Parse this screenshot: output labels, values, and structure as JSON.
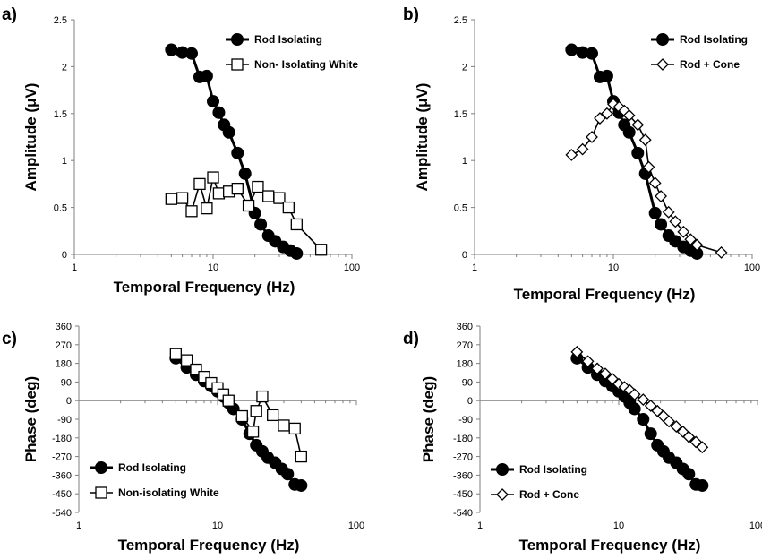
{
  "chart_data": [
    {
      "panel": "a)",
      "type": "line",
      "xlabel": "Temporal Frequency (Hz)",
      "ylabel": "Amplitude (μV)",
      "xscale": "log",
      "xlim": [
        1,
        100
      ],
      "ylim": [
        0,
        2.5
      ],
      "xticks": [
        "1",
        "10",
        "100"
      ],
      "yticks": [
        "0",
        "0.5",
        "1",
        "1.5",
        "2",
        "2.5"
      ],
      "legend": "top-right",
      "series": [
        {
          "name": "Rod Isolating",
          "marker": "filled-circle",
          "color": "#000000",
          "x": [
            5,
            6,
            7,
            8,
            9,
            10,
            11,
            12,
            13,
            15,
            17,
            20,
            22,
            25,
            28,
            32,
            36,
            40
          ],
          "y": [
            2.18,
            2.15,
            2.14,
            1.89,
            1.9,
            1.63,
            1.51,
            1.38,
            1.3,
            1.08,
            0.86,
            0.44,
            0.32,
            0.2,
            0.14,
            0.08,
            0.04,
            0.01
          ]
        },
        {
          "name": "Non- Isolating White",
          "marker": "open-square",
          "color": "#000000",
          "x": [
            5,
            6,
            7,
            8,
            9,
            10,
            11,
            13,
            15,
            18,
            21,
            25,
            30,
            35,
            40,
            60
          ],
          "y": [
            0.59,
            0.6,
            0.46,
            0.75,
            0.49,
            0.82,
            0.65,
            0.67,
            0.7,
            0.52,
            0.72,
            0.62,
            0.6,
            0.5,
            0.32,
            0.05
          ]
        }
      ]
    },
    {
      "panel": "b)",
      "type": "line",
      "xlabel": "Temporal Frequency (Hz)",
      "ylabel": "Amplitude (μV)",
      "xscale": "log",
      "xlim": [
        1,
        100
      ],
      "ylim": [
        0,
        2.5
      ],
      "xticks": [
        "1",
        "10",
        "100"
      ],
      "yticks": [
        "0",
        "0.5",
        "1",
        "1.5",
        "2",
        "2.5"
      ],
      "legend": "top-right",
      "series": [
        {
          "name": "Rod Isolating",
          "marker": "filled-circle",
          "color": "#000000",
          "x": [
            5,
            6,
            7,
            8,
            9,
            10,
            11,
            12,
            13,
            15,
            17,
            20,
            22,
            25,
            28,
            32,
            36,
            40
          ],
          "y": [
            2.18,
            2.15,
            2.14,
            1.89,
            1.9,
            1.63,
            1.51,
            1.38,
            1.3,
            1.08,
            0.86,
            0.44,
            0.32,
            0.2,
            0.14,
            0.08,
            0.04,
            0.01
          ]
        },
        {
          "name": "Rod + Cone",
          "marker": "open-diamond",
          "color": "#000000",
          "x": [
            5,
            6,
            7,
            8,
            9,
            10,
            11,
            12,
            13,
            15,
            17,
            18,
            20,
            22,
            25,
            28,
            32,
            36,
            40,
            60
          ],
          "y": [
            1.06,
            1.12,
            1.25,
            1.45,
            1.5,
            1.6,
            1.57,
            1.53,
            1.48,
            1.38,
            1.22,
            0.93,
            0.76,
            0.62,
            0.45,
            0.35,
            0.24,
            0.16,
            0.1,
            0.02
          ]
        }
      ]
    },
    {
      "panel": "c)",
      "type": "line",
      "xlabel": "Temporal Frequency (Hz)",
      "ylabel": "Phase (deg)",
      "xscale": "log",
      "xlim": [
        1,
        100
      ],
      "ylim": [
        -540,
        360
      ],
      "xticks": [
        "1",
        "10",
        "100"
      ],
      "yticks": [
        "-540",
        "-450",
        "-360",
        "-270",
        "-180",
        "-90",
        "0",
        "90",
        "180",
        "270",
        "360"
      ],
      "legend": "bottom-left",
      "series": [
        {
          "name": "Rod Isolating",
          "marker": "filled-circle",
          "color": "#000000",
          "x": [
            5,
            6,
            7,
            8,
            9,
            10,
            11,
            12,
            13,
            15,
            17,
            19,
            21,
            23,
            26,
            29,
            32,
            36,
            40
          ],
          "y": [
            205,
            160,
            125,
            95,
            70,
            45,
            20,
            -10,
            -40,
            -90,
            -160,
            -215,
            -245,
            -275,
            -300,
            -330,
            -355,
            -405,
            -410
          ]
        },
        {
          "name": "Non-isolating White",
          "marker": "open-square",
          "color": "#000000",
          "x": [
            5,
            6,
            7,
            8,
            9,
            10,
            11,
            12,
            15,
            18,
            19,
            21,
            25,
            30,
            36,
            40
          ],
          "y": [
            225,
            195,
            150,
            115,
            85,
            60,
            30,
            0,
            -75,
            -150,
            -50,
            20,
            -70,
            -120,
            -135,
            -270
          ]
        }
      ]
    },
    {
      "panel": "d)",
      "type": "line",
      "xlabel": "Temporal Frequency (Hz)",
      "ylabel": "Phase (deg)",
      "xscale": "log",
      "xlim": [
        1,
        100
      ],
      "ylim": [
        -540,
        360
      ],
      "xticks": [
        "1",
        "10",
        "100"
      ],
      "yticks": [
        "-540",
        "-450",
        "-360",
        "-270",
        "-180",
        "-90",
        "0",
        "90",
        "180",
        "270",
        "360"
      ],
      "legend": "bottom-left",
      "series": [
        {
          "name": "Rod Isolating",
          "marker": "filled-circle",
          "color": "#000000",
          "x": [
            5,
            6,
            7,
            8,
            9,
            10,
            11,
            12,
            13,
            15,
            17,
            19,
            21,
            23,
            26,
            29,
            32,
            36,
            40
          ],
          "y": [
            205,
            160,
            125,
            95,
            70,
            45,
            20,
            -10,
            -40,
            -90,
            -160,
            -215,
            -245,
            -275,
            -300,
            -330,
            -355,
            -405,
            -410
          ]
        },
        {
          "name": "Rod + Cone",
          "marker": "open-diamond",
          "color": "#000000",
          "x": [
            5,
            6,
            7,
            8,
            9,
            10,
            11,
            12,
            13,
            15,
            17,
            19,
            21,
            23,
            26,
            29,
            32,
            36,
            40
          ],
          "y": [
            235,
            190,
            155,
            130,
            105,
            80,
            65,
            50,
            30,
            5,
            -25,
            -50,
            -75,
            -100,
            -125,
            -150,
            -175,
            -200,
            -225
          ]
        }
      ]
    }
  ]
}
